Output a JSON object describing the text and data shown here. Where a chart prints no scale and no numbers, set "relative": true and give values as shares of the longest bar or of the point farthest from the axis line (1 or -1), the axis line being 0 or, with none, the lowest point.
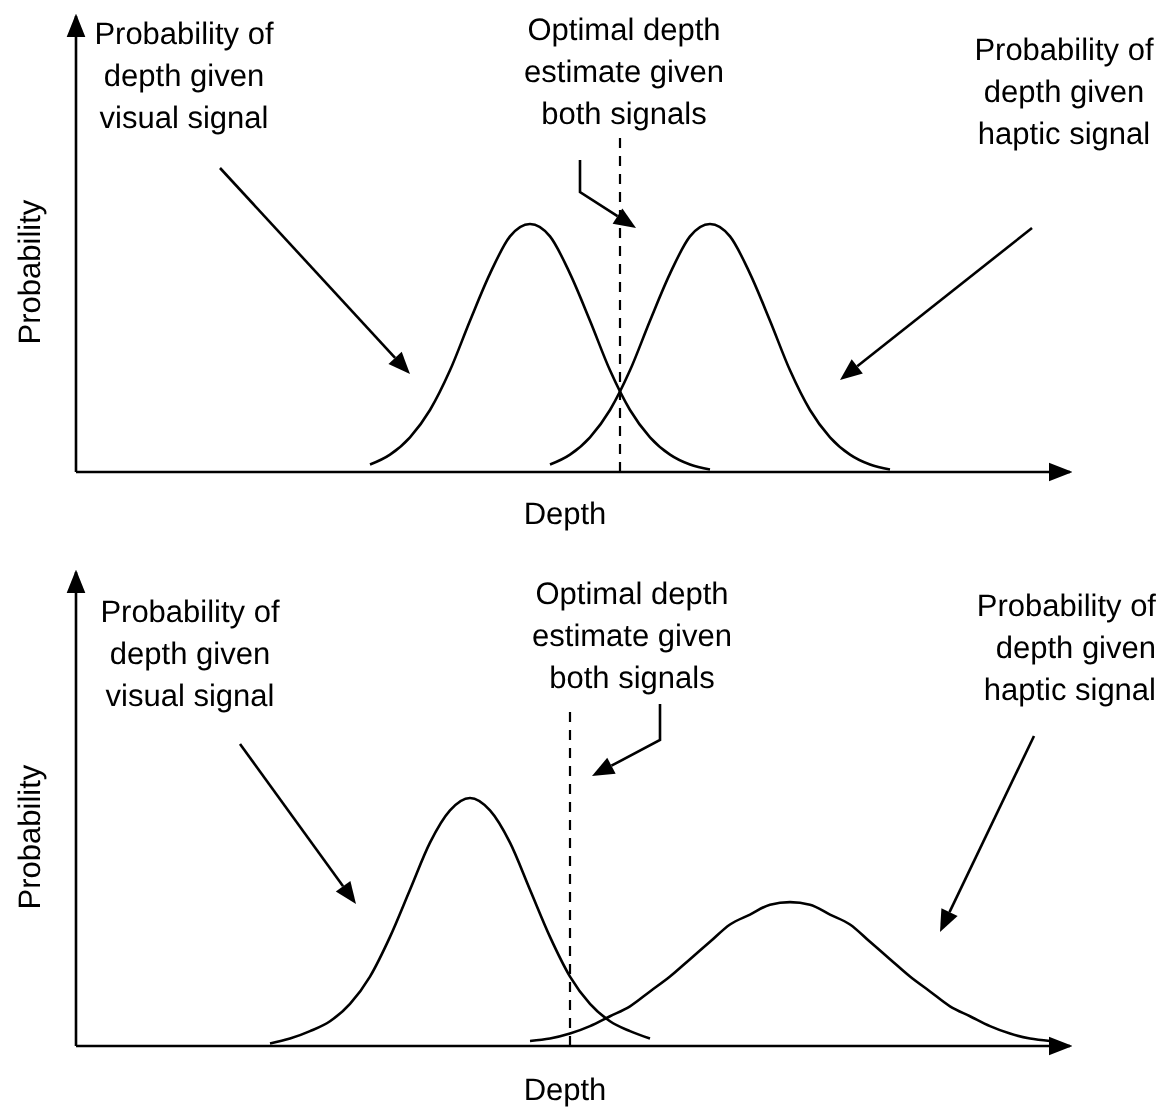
{
  "chart_data": [
    {
      "type": "line",
      "relative": true,
      "ylabel": "Probability",
      "xlabel": "Depth",
      "marker": "none",
      "line_style": "solid",
      "categories": [
        null,
        null,
        null,
        null,
        null,
        null,
        null,
        null,
        null,
        null,
        null,
        null,
        null,
        null,
        null,
        null,
        null,
        null,
        null,
        null,
        null,
        null,
        null,
        null,
        null,
        null,
        null,
        null,
        null,
        null,
        null,
        null,
        null,
        null,
        null,
        null,
        null,
        null,
        null,
        null,
        null,
        null,
        null,
        null,
        null,
        null,
        null,
        null,
        null
      ],
      "series": [
        {
          "color": "#000000",
          "values": [
            null,
            null,
            null,
            null,
            null,
            null,
            null,
            null,
            null,
            null,
            null,
            null,
            null,
            null,
            0.03,
            0.07,
            0.14,
            0.25,
            0.41,
            0.61,
            0.8,
            0.95,
            1,
            0.95,
            0.8,
            0.61,
            0.41,
            0.25,
            0.14,
            0.07,
            0.03,
            0.01,
            null,
            null,
            null,
            null,
            null,
            null,
            null,
            null,
            null,
            null,
            null,
            null,
            null,
            null,
            null,
            null,
            null
          ]
        },
        {
          "color": "#000000",
          "values": [
            null,
            null,
            null,
            null,
            null,
            null,
            null,
            null,
            null,
            null,
            null,
            null,
            null,
            null,
            null,
            null,
            null,
            null,
            null,
            null,
            null,
            null,
            null,
            0.03,
            0.07,
            0.14,
            0.25,
            0.41,
            0.61,
            0.8,
            0.95,
            1,
            0.95,
            0.8,
            0.61,
            0.41,
            0.25,
            0.14,
            0.07,
            0.03,
            0.01,
            null,
            null,
            null,
            null,
            null,
            null,
            null,
            null
          ]
        }
      ],
      "annotations": [
        "Probability of\ndepth given\nvisual signal",
        "Probability of\ndepth given\nhaptic signal",
        "Optimal depth\nestimate given\nboth signals"
      ]
    },
    {
      "type": "line",
      "relative": true,
      "ylabel": "Probability",
      "xlabel": "Depth",
      "marker": "none",
      "line_style": "solid",
      "categories": [
        null,
        null,
        null,
        null,
        null,
        null,
        null,
        null,
        null,
        null,
        null,
        null,
        null,
        null,
        null,
        null,
        null,
        null,
        null,
        null,
        null,
        null,
        null,
        null,
        null,
        null,
        null,
        null,
        null,
        null,
        null,
        null,
        null,
        null,
        null,
        null,
        null,
        null,
        null,
        null,
        null,
        null,
        null,
        null,
        null,
        null,
        null,
        null,
        null
      ],
      "series": [
        {
          "color": "#000000",
          "values": [
            null,
            null,
            null,
            null,
            null,
            null,
            null,
            null,
            null,
            0.01,
            0.03,
            0.06,
            0.1,
            0.17,
            0.28,
            0.44,
            0.63,
            0.82,
            0.95,
            1,
            0.95,
            0.82,
            0.63,
            0.44,
            0.28,
            0.17,
            0.1,
            0.06,
            0.03,
            null,
            null,
            null,
            null,
            null,
            null,
            null,
            null,
            null,
            null,
            null,
            null,
            null,
            null,
            null,
            null,
            null,
            null,
            null,
            null
          ]
        },
        {
          "color": "#000000",
          "values": [
            null,
            null,
            null,
            null,
            null,
            null,
            null,
            null,
            null,
            null,
            null,
            null,
            null,
            null,
            null,
            null,
            null,
            null,
            null,
            null,
            null,
            null,
            0.02,
            0.03,
            0.05,
            0.08,
            0.12,
            0.16,
            0.22,
            0.28,
            0.35,
            0.42,
            0.49,
            0.53,
            0.57,
            0.58,
            0.57,
            0.53,
            0.49,
            0.42,
            0.35,
            0.28,
            0.22,
            0.16,
            0.12,
            0.08,
            0.05,
            0.03,
            0.02
          ]
        }
      ],
      "annotations": [
        "Probability of\ndepth given\nvisual signal",
        "Probability of\ndepth given\nhaptic signal",
        "Optimal depth\nestimate given\nboth signals"
      ]
    }
  ]
}
